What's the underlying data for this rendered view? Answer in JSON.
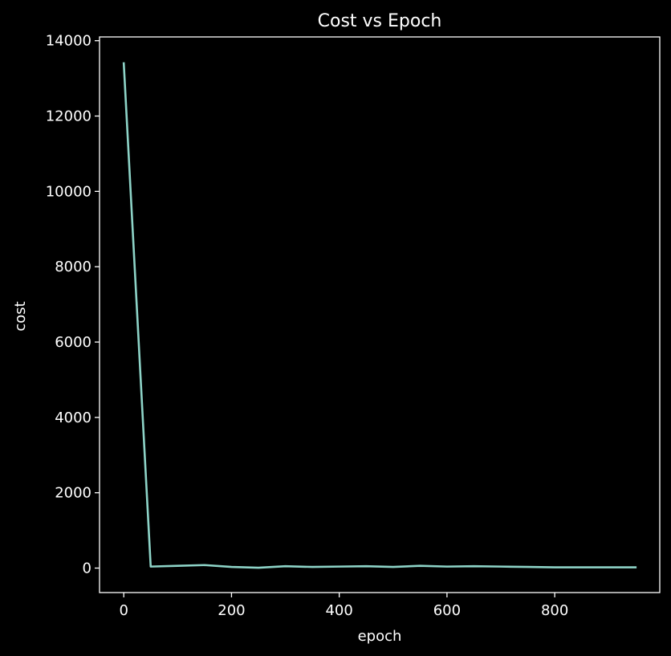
{
  "chart_data": {
    "type": "line",
    "title": "Cost vs Epoch",
    "xlabel": "epoch",
    "ylabel": "cost",
    "xlim": [
      -45,
      995
    ],
    "ylim": [
      -650,
      14100
    ],
    "xticks": [
      0,
      200,
      400,
      600,
      800
    ],
    "yticks": [
      0,
      2000,
      4000,
      6000,
      8000,
      10000,
      12000,
      14000
    ],
    "grid": false,
    "colors": {
      "background": "#000000",
      "axes": "#ffffff",
      "line": "#8dd3c7"
    },
    "series": [
      {
        "x": [
          0,
          50,
          100,
          150,
          200,
          250,
          300,
          350,
          400,
          450,
          500,
          550,
          600,
          650,
          700,
          750,
          800,
          850,
          900,
          950
        ],
        "values": [
          13400,
          40,
          60,
          80,
          30,
          10,
          50,
          30,
          40,
          50,
          30,
          60,
          40,
          50,
          40,
          30,
          20,
          20,
          20,
          20
        ]
      }
    ]
  }
}
